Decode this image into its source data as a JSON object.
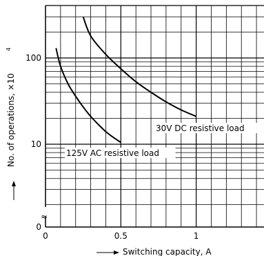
{
  "chart_data": {
    "type": "line",
    "xlabel": "Switching capacity, A",
    "ylabel": "No. of operations, ×10",
    "ylabel_exponent": "4",
    "x_scale": "linear",
    "y_scale": "log",
    "xlim": [
      0,
      1.4
    ],
    "ylim": [
      1,
      300
    ],
    "grid": true,
    "x_ticks": [
      {
        "value": 0,
        "label": "0"
      },
      {
        "value": 0.5,
        "label": "0.5"
      },
      {
        "value": 1,
        "label": "1"
      }
    ],
    "y_ticks": [
      {
        "value": 100,
        "label": "100"
      },
      {
        "value": 10,
        "label": "10"
      },
      {
        "value": 1,
        "label": "0"
      }
    ],
    "axis_break_symbol": "≈",
    "series": [
      {
        "name": "30V DC resistive load",
        "x": [
          0.25,
          0.3,
          0.4,
          0.5,
          0.6,
          0.7,
          0.8,
          0.9,
          1.0
        ],
        "y": [
          300,
          180,
          110,
          75,
          53,
          40,
          31,
          25,
          21
        ]
      },
      {
        "name": "125V AC resistive load",
        "x": [
          0.07,
          0.1,
          0.15,
          0.2,
          0.25,
          0.3,
          0.35,
          0.4,
          0.45,
          0.5
        ],
        "y": [
          130,
          80,
          50,
          36,
          27,
          21,
          17,
          14,
          12,
          10.5
        ]
      }
    ],
    "annotations": [
      {
        "text": "30V DC resistive load",
        "series": 0
      },
      {
        "text": "125V AC resistive load",
        "series": 1
      }
    ]
  }
}
